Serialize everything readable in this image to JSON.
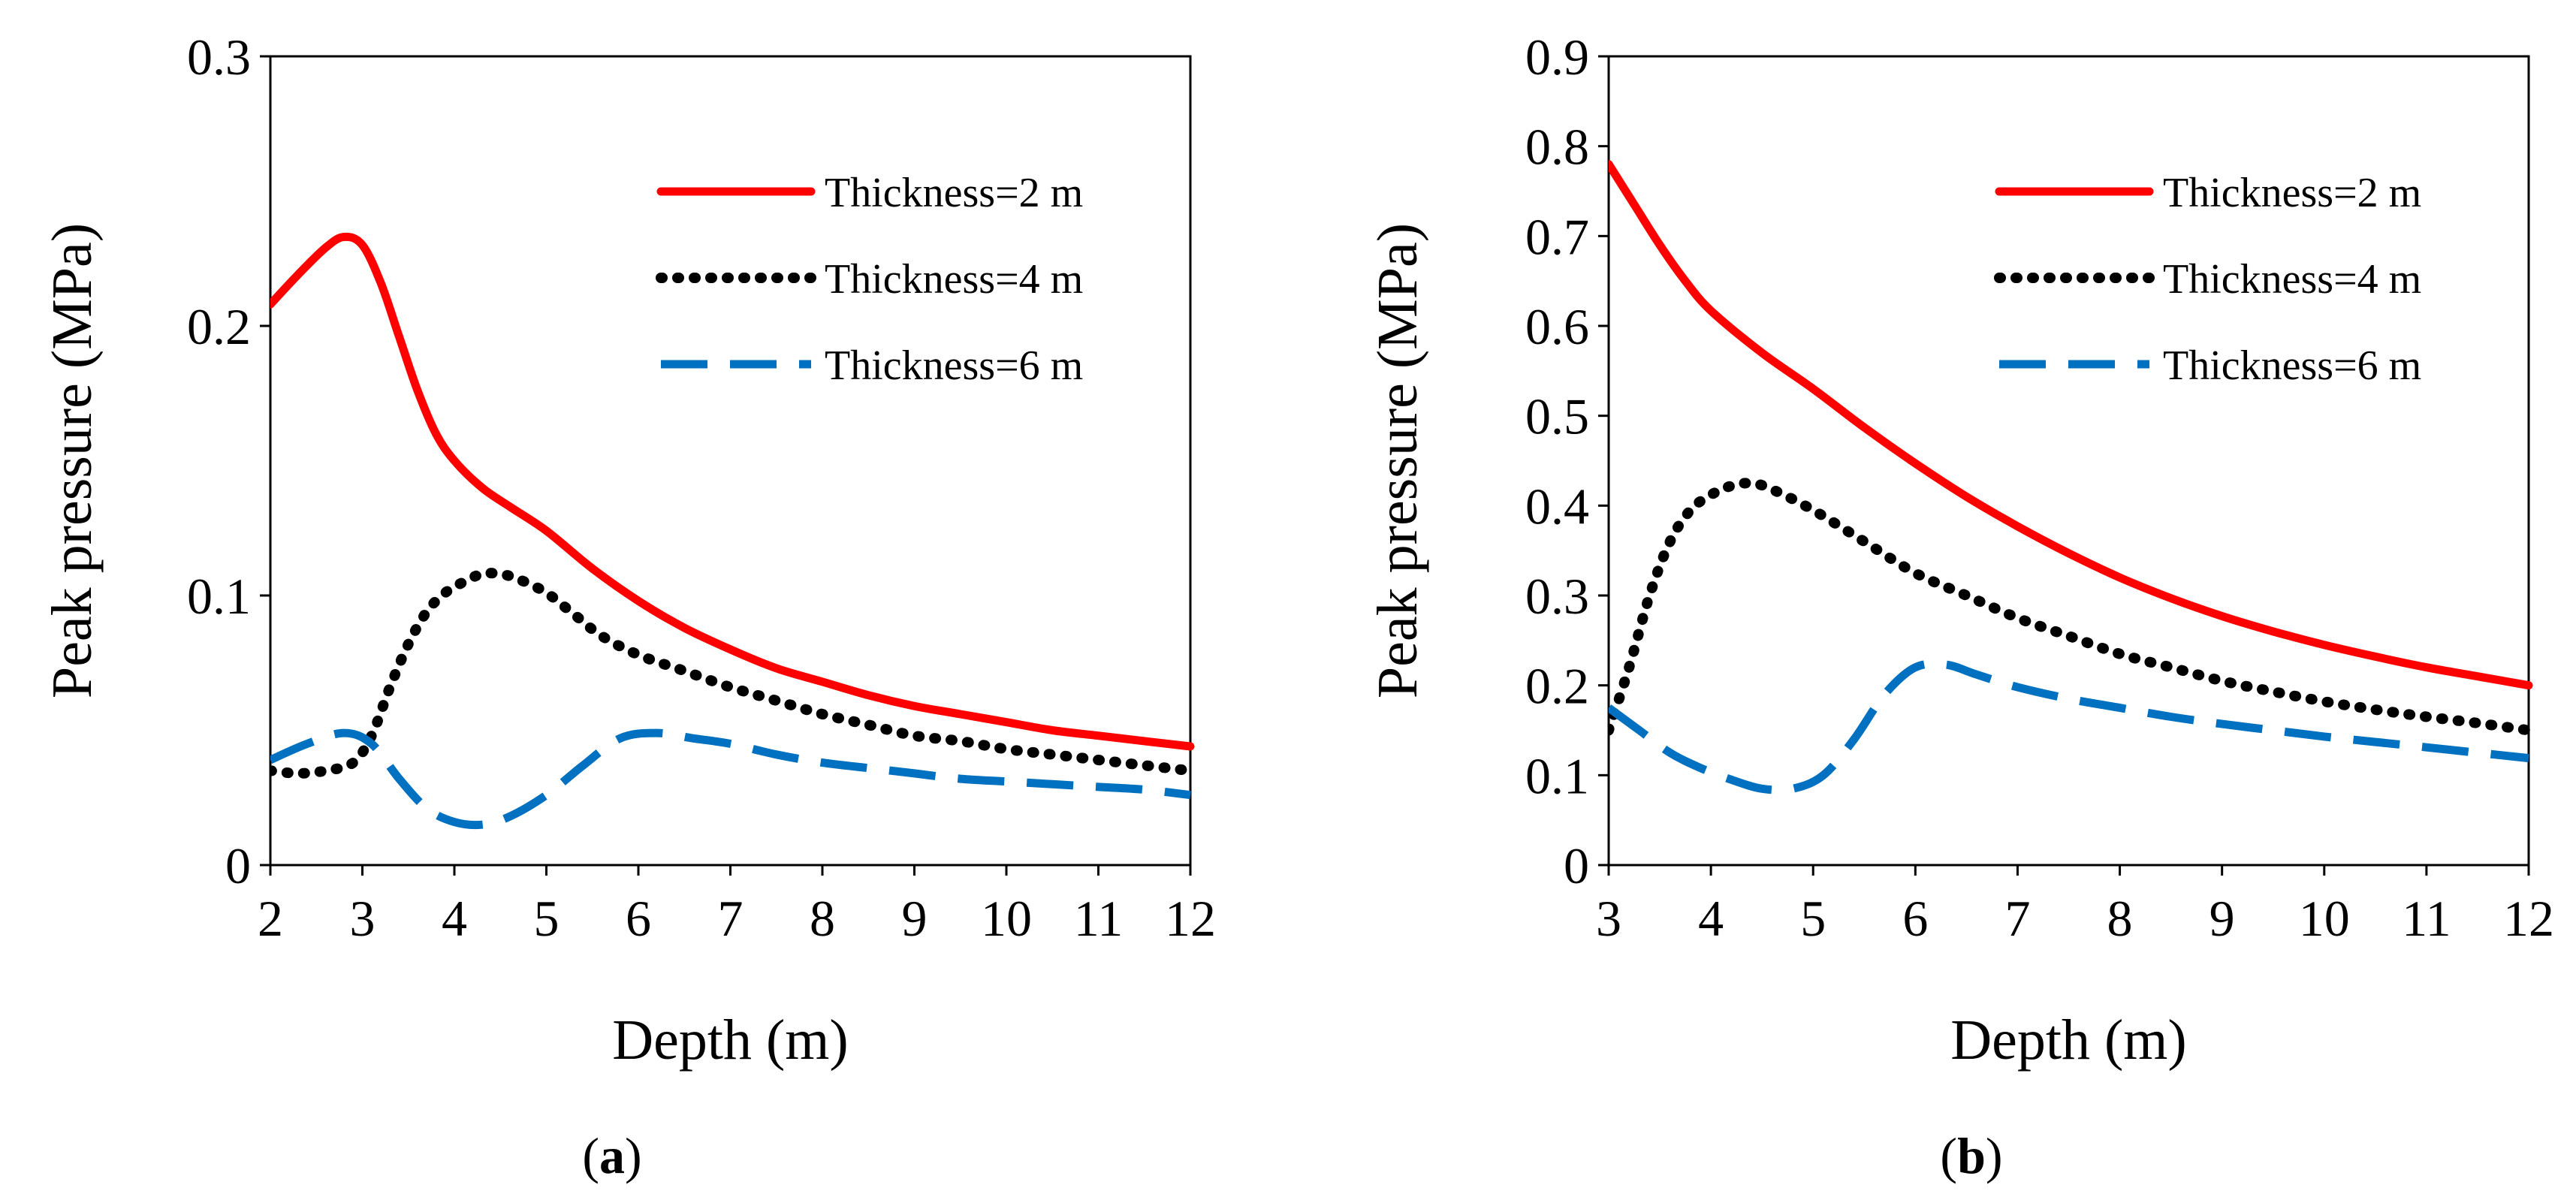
{
  "chart_data": [
    {
      "type": "line",
      "panel_label": "a",
      "xlabel": "Depth (m)",
      "ylabel": "Peak pressure (MPa)",
      "xlim": [
        2,
        12
      ],
      "ylim": [
        0,
        0.3
      ],
      "xticks": [
        "2",
        "3",
        "4",
        "5",
        "6",
        "7",
        "8",
        "9",
        "10",
        "11",
        "12"
      ],
      "yticks": [
        "0",
        "0.1",
        "0.2",
        "0.3"
      ],
      "grid": false,
      "legend_position": "top-right",
      "series": [
        {
          "name": "Thickness=2 m",
          "color": "#ff0000",
          "style": "solid",
          "x": [
            2,
            2.3,
            2.6,
            2.8,
            3.0,
            3.2,
            3.4,
            3.6,
            3.8,
            4.0,
            4.3,
            4.6,
            5.0,
            5.5,
            6.0,
            6.5,
            7.0,
            7.5,
            8.0,
            8.5,
            9.0,
            9.5,
            10.0,
            10.5,
            11.0,
            11.5,
            12.0
          ],
          "y": [
            0.208,
            0.219,
            0.229,
            0.233,
            0.23,
            0.216,
            0.196,
            0.176,
            0.16,
            0.15,
            0.14,
            0.133,
            0.124,
            0.11,
            0.098,
            0.088,
            0.08,
            0.073,
            0.068,
            0.063,
            0.059,
            0.056,
            0.053,
            0.05,
            0.048,
            0.046,
            0.044
          ]
        },
        {
          "name": "Thickness=4 m",
          "color": "#000000",
          "style": "dotted",
          "x": [
            2,
            2.3,
            2.6,
            2.9,
            3.1,
            3.3,
            3.5,
            3.7,
            3.9,
            4.1,
            4.3,
            4.5,
            4.7,
            5.0,
            5.3,
            5.6,
            6.0,
            6.5,
            7.0,
            7.5,
            8.0,
            8.5,
            9.0,
            9.5,
            10.0,
            10.5,
            11.0,
            11.5,
            12.0
          ],
          "y": [
            0.035,
            0.034,
            0.035,
            0.038,
            0.048,
            0.066,
            0.082,
            0.094,
            0.101,
            0.105,
            0.108,
            0.108,
            0.106,
            0.101,
            0.093,
            0.085,
            0.078,
            0.072,
            0.066,
            0.061,
            0.056,
            0.052,
            0.048,
            0.046,
            0.043,
            0.041,
            0.039,
            0.037,
            0.035
          ]
        },
        {
          "name": "Thickness=6 m",
          "color": "#0070c0",
          "style": "dashed",
          "x": [
            2,
            2.4,
            2.8,
            3.1,
            3.4,
            3.7,
            4.0,
            4.3,
            4.6,
            5.0,
            5.4,
            5.8,
            6.2,
            6.6,
            7.0,
            7.5,
            8.0,
            8.5,
            9.0,
            9.5,
            10.0,
            10.5,
            11.0,
            11.5,
            12.0
          ],
          "y": [
            0.039,
            0.045,
            0.049,
            0.045,
            0.032,
            0.021,
            0.016,
            0.015,
            0.018,
            0.026,
            0.037,
            0.047,
            0.049,
            0.047,
            0.045,
            0.041,
            0.038,
            0.036,
            0.034,
            0.032,
            0.031,
            0.03,
            0.029,
            0.028,
            0.026
          ]
        }
      ]
    },
    {
      "type": "line",
      "panel_label": "b",
      "xlabel": "Depth (m)",
      "ylabel": "Peak pressure (MPa)",
      "xlim": [
        3,
        12
      ],
      "ylim": [
        0,
        0.9
      ],
      "xticks": [
        "3",
        "4",
        "5",
        "6",
        "7",
        "8",
        "9",
        "10",
        "11",
        "12"
      ],
      "yticks": [
        "0",
        "0.1",
        "0.2",
        "0.3",
        "0.4",
        "0.5",
        "0.6",
        "0.7",
        "0.8",
        "0.9"
      ],
      "grid": false,
      "legend_position": "top-right",
      "series": [
        {
          "name": "Thickness=2 m",
          "color": "#ff0000",
          "style": "solid",
          "x": [
            3.0,
            3.25,
            3.5,
            3.75,
            4.0,
            4.5,
            5.0,
            5.5,
            6.0,
            6.5,
            7.0,
            7.5,
            8.0,
            8.5,
            9.0,
            9.5,
            10.0,
            10.5,
            11.0,
            11.5,
            12.0
          ],
          "y": [
            0.78,
            0.735,
            0.69,
            0.65,
            0.617,
            0.57,
            0.53,
            0.487,
            0.447,
            0.41,
            0.377,
            0.347,
            0.32,
            0.297,
            0.277,
            0.26,
            0.245,
            0.232,
            0.22,
            0.21,
            0.2
          ]
        },
        {
          "name": "Thickness=4 m",
          "color": "#000000",
          "style": "dotted",
          "x": [
            3.0,
            3.2,
            3.4,
            3.6,
            3.8,
            4.0,
            4.2,
            4.4,
            4.6,
            5.0,
            5.5,
            6.0,
            6.5,
            7.0,
            7.5,
            8.0,
            8.5,
            9.0,
            9.5,
            10.0,
            10.5,
            11.0,
            11.5,
            12.0
          ],
          "y": [
            0.15,
            0.22,
            0.3,
            0.36,
            0.395,
            0.412,
            0.422,
            0.425,
            0.418,
            0.395,
            0.36,
            0.325,
            0.3,
            0.275,
            0.255,
            0.235,
            0.22,
            0.205,
            0.193,
            0.182,
            0.173,
            0.165,
            0.158,
            0.15
          ]
        },
        {
          "name": "Thickness=6 m",
          "color": "#0070c0",
          "style": "dashed",
          "x": [
            3.0,
            3.3,
            3.6,
            3.9,
            4.2,
            4.5,
            4.8,
            5.1,
            5.4,
            5.7,
            6.0,
            6.3,
            6.6,
            7.0,
            7.5,
            8.0,
            8.5,
            9.0,
            9.5,
            10.0,
            10.5,
            11.0,
            11.5,
            12.0
          ],
          "y": [
            0.175,
            0.15,
            0.125,
            0.108,
            0.095,
            0.085,
            0.085,
            0.1,
            0.14,
            0.19,
            0.22,
            0.223,
            0.212,
            0.198,
            0.185,
            0.175,
            0.165,
            0.157,
            0.15,
            0.143,
            0.137,
            0.131,
            0.125,
            0.119
          ]
        }
      ]
    }
  ]
}
